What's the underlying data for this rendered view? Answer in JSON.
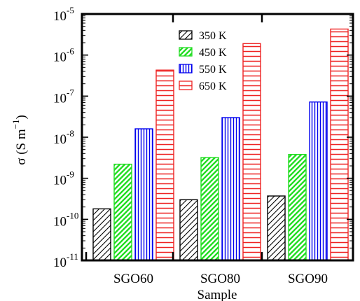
{
  "chart_data": {
    "type": "bar",
    "ylabel": "σ (S m",
    "ylabel_exponent": "−1",
    "ylabel_close": ")",
    "xlabel": "Sample",
    "categories": [
      "SGO60",
      "SGO80",
      "SGO90"
    ],
    "y_scale": "log",
    "ylim": [
      1e-11,
      1e-05
    ],
    "y_ticks": [
      {
        "base": "10",
        "exp": "-11"
      },
      {
        "base": "10",
        "exp": "-10"
      },
      {
        "base": "10",
        "exp": "-9"
      },
      {
        "base": "10",
        "exp": "-8"
      },
      {
        "base": "10",
        "exp": "-7"
      },
      {
        "base": "10",
        "exp": "-6"
      },
      {
        "base": "10",
        "exp": "-5"
      }
    ],
    "grid": false,
    "legend_position": "top-center",
    "series": [
      {
        "name": "350 K",
        "color": "#000000",
        "pattern": "diagonal-hatch",
        "values": [
          1.8e-10,
          3e-10,
          3.7e-10
        ]
      },
      {
        "name": "450 K",
        "color": "#22dd22",
        "pattern": "diagonal-hatch",
        "values": [
          2.2e-09,
          3.2e-09,
          3.8e-09
        ]
      },
      {
        "name": "550 K",
        "color": "#0000ee",
        "pattern": "vertical-lines",
        "values": [
          1.6e-08,
          3e-08,
          7.2e-08
        ]
      },
      {
        "name": "650 K",
        "color": "#ee2222",
        "pattern": "horizontal-lines",
        "values": [
          4.3e-07,
          1.9e-06,
          4.3e-06
        ]
      }
    ]
  }
}
